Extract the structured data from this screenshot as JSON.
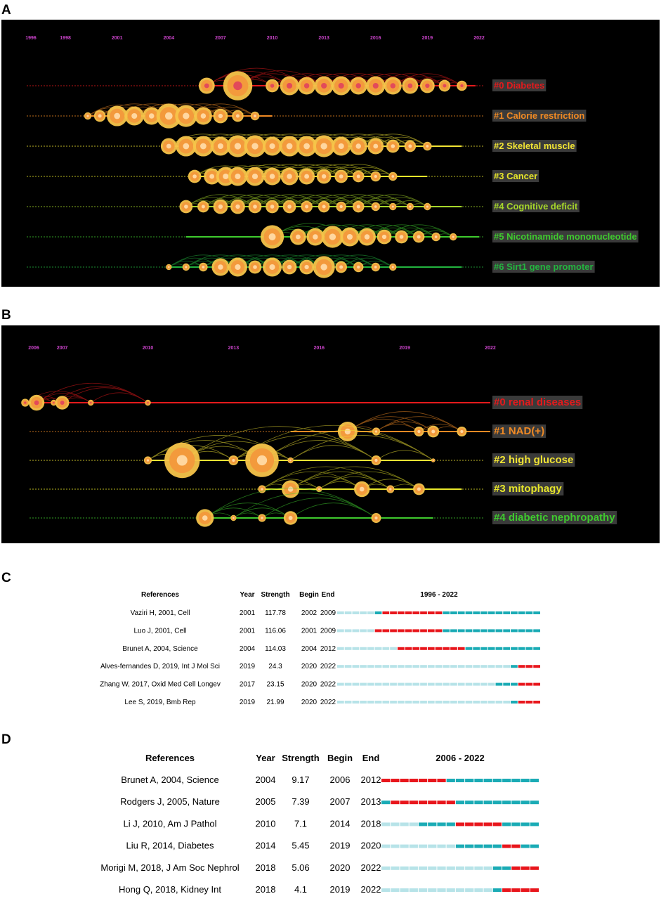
{
  "panels": {
    "A": "A",
    "B": "B",
    "C": "C",
    "D": "D"
  },
  "colors": {
    "background": "#000000",
    "year_label": "#cc44cc",
    "burst_red": "#e8161c",
    "burst_teal": "#1aabb5",
    "burst_light": "#b7e3e8",
    "cluster_colors": [
      "#e41a1c",
      "#f08a24",
      "#f1e434",
      "#e7e62a",
      "#a6d62a",
      "#3fca2e",
      "#23b43f"
    ]
  },
  "chart_data": [
    {
      "type": "timeline",
      "title": "A",
      "years": [
        "1996",
        "1998",
        "2001",
        "2004",
        "2007",
        "2010",
        "2013",
        "2016",
        "2019",
        "2022"
      ],
      "year_values": [
        1996,
        1998,
        2001,
        2004,
        2007,
        2010,
        2013,
        2016,
        2019,
        2022
      ],
      "xlim": [
        1996,
        2022
      ],
      "clusters": [
        {
          "label": "#0 Diabetes",
          "color": "#e41a1c",
          "start": 2006.2,
          "end": 2021.8,
          "nodes": [
            [
              2006.2,
              2.2
            ],
            [
              2008.0,
              4.0
            ],
            [
              2010.0,
              1.8
            ],
            [
              2011.0,
              2.6
            ],
            [
              2012.0,
              2.4
            ],
            [
              2013.0,
              2.6
            ],
            [
              2014.0,
              2.6
            ],
            [
              2015.0,
              2.4
            ],
            [
              2016.0,
              2.6
            ],
            [
              2017.0,
              2.4
            ],
            [
              2018.0,
              2.2
            ],
            [
              2019.0,
              2.0
            ],
            [
              2020.0,
              1.6
            ],
            [
              2021.0,
              1.4
            ]
          ]
        },
        {
          "label": "#1 Calorie restriction",
          "color": "#f08a24",
          "start": 1999.3,
          "end": 2010.0,
          "nodes": [
            [
              1999.3,
              1.0
            ],
            [
              2000.0,
              1.6
            ],
            [
              2001.0,
              2.8
            ],
            [
              2002.0,
              2.6
            ],
            [
              2003.0,
              2.4
            ],
            [
              2004.0,
              3.4
            ],
            [
              2005.0,
              3.0
            ],
            [
              2006.0,
              2.4
            ],
            [
              2007.0,
              2.0
            ],
            [
              2008.0,
              1.6
            ],
            [
              2009.0,
              1.2
            ]
          ]
        },
        {
          "label": "#2 Skeletal muscle",
          "color": "#f1e434",
          "start": 2004.0,
          "end": 2021.0,
          "nodes": [
            [
              2004.0,
              2.2
            ],
            [
              2005.0,
              2.8
            ],
            [
              2006.0,
              2.8
            ],
            [
              2007.0,
              2.6
            ],
            [
              2008.0,
              3.0
            ],
            [
              2009.0,
              3.0
            ],
            [
              2010.0,
              2.6
            ],
            [
              2011.0,
              2.8
            ],
            [
              2012.0,
              2.8
            ],
            [
              2013.0,
              3.0
            ],
            [
              2014.0,
              2.6
            ],
            [
              2015.0,
              2.4
            ],
            [
              2016.0,
              2.2
            ],
            [
              2017.0,
              1.8
            ],
            [
              2018.0,
              1.6
            ],
            [
              2019.0,
              1.2
            ]
          ]
        },
        {
          "label": "#3 Cancer",
          "color": "#e7e62a",
          "start": 2005.5,
          "end": 2019.0,
          "nodes": [
            [
              2005.5,
              1.8
            ],
            [
              2006.5,
              2.2
            ],
            [
              2007.3,
              2.6
            ],
            [
              2008.0,
              2.6
            ],
            [
              2009.0,
              2.6
            ],
            [
              2010.0,
              2.4
            ],
            [
              2011.0,
              2.4
            ],
            [
              2012.0,
              2.2
            ],
            [
              2013.0,
              2.0
            ],
            [
              2014.0,
              1.8
            ],
            [
              2015.0,
              1.6
            ],
            [
              2016.0,
              1.4
            ],
            [
              2017.0,
              1.2
            ]
          ]
        },
        {
          "label": "#4 Cognitive deficit",
          "color": "#a6d62a",
          "start": 2005.0,
          "end": 2021.0,
          "nodes": [
            [
              2005.0,
              1.8
            ],
            [
              2006.0,
              1.6
            ],
            [
              2007.0,
              2.0
            ],
            [
              2008.0,
              2.0
            ],
            [
              2009.0,
              1.8
            ],
            [
              2010.0,
              1.8
            ],
            [
              2011.0,
              1.8
            ],
            [
              2012.0,
              1.6
            ],
            [
              2013.0,
              1.6
            ],
            [
              2014.0,
              1.4
            ],
            [
              2015.0,
              1.6
            ],
            [
              2016.0,
              1.2
            ],
            [
              2017.0,
              1.0
            ],
            [
              2018.0,
              1.0
            ],
            [
              2019.0,
              1.0
            ]
          ]
        },
        {
          "label": "#5 Nicotinamide mononucleotide",
          "color": "#3fca2e",
          "start": 2005.0,
          "end": 2022.0,
          "nodes": [
            [
              2010.0,
              3.2
            ],
            [
              2011.5,
              2.2
            ],
            [
              2012.5,
              2.4
            ],
            [
              2013.5,
              3.0
            ],
            [
              2014.5,
              2.6
            ],
            [
              2015.5,
              2.4
            ],
            [
              2016.5,
              2.0
            ],
            [
              2017.5,
              1.8
            ],
            [
              2018.5,
              1.6
            ],
            [
              2019.5,
              1.2
            ],
            [
              2020.5,
              1.0
            ]
          ]
        },
        {
          "label": "#6 Sirt1 gene promoter",
          "color": "#23b43f",
          "start": 2004.0,
          "end": 2021.0,
          "nodes": [
            [
              2004.0,
              0.8
            ],
            [
              2005.0,
              1.0
            ],
            [
              2006.0,
              1.2
            ],
            [
              2007.0,
              2.4
            ],
            [
              2008.0,
              2.6
            ],
            [
              2009.0,
              1.8
            ],
            [
              2010.0,
              2.6
            ],
            [
              2011.0,
              2.0
            ],
            [
              2012.0,
              2.0
            ],
            [
              2013.0,
              3.0
            ],
            [
              2014.0,
              1.6
            ],
            [
              2015.0,
              1.4
            ],
            [
              2016.0,
              1.2
            ],
            [
              2017.0,
              1.0
            ]
          ]
        }
      ]
    },
    {
      "type": "timeline",
      "title": "B",
      "years": [
        "2006",
        "2007",
        "2010",
        "2013",
        "2016",
        "2019",
        "2022"
      ],
      "year_values": [
        2006,
        2007,
        2010,
        2013,
        2016,
        2019,
        2022
      ],
      "xlim": [
        2006,
        2022
      ],
      "clusters": [
        {
          "label": "#0 renal diseases",
          "color": "#e41a1c",
          "start": 2005.7,
          "end": 2022.0,
          "nodes": [
            [
              2005.7,
              0.8
            ],
            [
              2006.1,
              1.6
            ],
            [
              2006.7,
              0.6
            ],
            [
              2007.0,
              1.4
            ],
            [
              2008.0,
              0.6
            ],
            [
              2010.0,
              0.6
            ]
          ]
        },
        {
          "label": "#1 NAD(+)",
          "color": "#f08a24",
          "start": 2015.0,
          "end": 2022.0,
          "nodes": [
            [
              2017.0,
              2.0
            ],
            [
              2018.0,
              0.8
            ],
            [
              2019.5,
              1.0
            ],
            [
              2020.0,
              1.2
            ],
            [
              2021.0,
              1.0
            ]
          ]
        },
        {
          "label": "#2 high glucose",
          "color": "#f1e434",
          "start": 2010.0,
          "end": 2020.0,
          "nodes": [
            [
              2010.0,
              0.8
            ],
            [
              2011.2,
              3.6
            ],
            [
              2013.0,
              1.0
            ],
            [
              2014.0,
              3.4
            ],
            [
              2015.0,
              0.6
            ],
            [
              2018.0,
              1.0
            ],
            [
              2020.0,
              0.4
            ]
          ]
        },
        {
          "label": "#3 mitophagy",
          "color": "#e7e62a",
          "start": 2014.0,
          "end": 2021.0,
          "nodes": [
            [
              2014.0,
              0.8
            ],
            [
              2015.0,
              1.8
            ],
            [
              2016.0,
              0.6
            ],
            [
              2017.5,
              1.6
            ],
            [
              2018.5,
              0.8
            ],
            [
              2019.5,
              1.2
            ]
          ]
        },
        {
          "label": "#4 diabetic nephropathy",
          "color": "#3fca2e",
          "start": 2012.0,
          "end": 2020.0,
          "nodes": [
            [
              2012.0,
              1.8
            ],
            [
              2013.0,
              0.6
            ],
            [
              2014.0,
              0.8
            ],
            [
              2015.0,
              1.4
            ],
            [
              2018.0,
              1.0
            ]
          ]
        }
      ]
    },
    {
      "type": "table",
      "title": "C",
      "headers": [
        "References",
        "Year",
        "Strength",
        "Begin",
        "End",
        "1996 - 2022"
      ],
      "range": [
        1996,
        2022
      ],
      "rows": [
        {
          "ref": "Vaziri H, 2001, Cell",
          "year": "2001",
          "strength": "117.78",
          "begin": "2002",
          "end": "2009",
          "year_num": 2001,
          "begin_num": 2002,
          "end_num": 2009
        },
        {
          "ref": "Luo J, 2001, Cell",
          "year": "2001",
          "strength": "116.06",
          "begin": "2001",
          "end": "2009",
          "year_num": 2001,
          "begin_num": 2001,
          "end_num": 2009
        },
        {
          "ref": "Brunet A, 2004, Science",
          "year": "2004",
          "strength": "114.03",
          "begin": "2004",
          "end": "2012",
          "year_num": 2004,
          "begin_num": 2004,
          "end_num": 2012
        },
        {
          "ref": "Alves-fernandes D, 2019, Int J Mol Sci",
          "year": "2019",
          "strength": "24.3",
          "begin": "2020",
          "end": "2022",
          "year_num": 2019,
          "begin_num": 2020,
          "end_num": 2022
        },
        {
          "ref": "Zhang W, 2017, Oxid Med Cell Longev",
          "year": "2017",
          "strength": "23.15",
          "begin": "2020",
          "end": "2022",
          "year_num": 2017,
          "begin_num": 2020,
          "end_num": 2022
        },
        {
          "ref": "Lee S, 2019, Bmb Rep",
          "year": "2019",
          "strength": "21.99",
          "begin": "2020",
          "end": "2022",
          "year_num": 2019,
          "begin_num": 2020,
          "end_num": 2022
        }
      ]
    },
    {
      "type": "table",
      "title": "D",
      "headers": [
        "References",
        "Year",
        "Strength",
        "Begin",
        "End",
        "2006 - 2022"
      ],
      "range": [
        2006,
        2022
      ],
      "rows": [
        {
          "ref": "Brunet A, 2004, Science",
          "year": "2004",
          "strength": "9.17",
          "begin": "2006",
          "end": "2012",
          "year_num": 2004,
          "begin_num": 2006,
          "end_num": 2012
        },
        {
          "ref": "Rodgers J, 2005, Nature",
          "year": "2005",
          "strength": "7.39",
          "begin": "2007",
          "end": "2013",
          "year_num": 2005,
          "begin_num": 2007,
          "end_num": 2013
        },
        {
          "ref": "Li J, 2010, Am J Pathol",
          "year": "2010",
          "strength": "7.1",
          "begin": "2014",
          "end": "2018",
          "year_num": 2010,
          "begin_num": 2014,
          "end_num": 2018
        },
        {
          "ref": "Liu R, 2014, Diabetes",
          "year": "2014",
          "strength": "5.45",
          "begin": "2019",
          "end": "2020",
          "year_num": 2014,
          "begin_num": 2019,
          "end_num": 2020
        },
        {
          "ref": "Morigi M, 2018, J Am Soc Nephrol",
          "year": "2018",
          "strength": "5.06",
          "begin": "2020",
          "end": "2022",
          "year_num": 2018,
          "begin_num": 2020,
          "end_num": 2022
        },
        {
          "ref": "Hong Q, 2018, Kidney Int",
          "year": "2018",
          "strength": "4.1",
          "begin": "2019",
          "end": "2022",
          "year_num": 2018,
          "begin_num": 2019,
          "end_num": 2022
        }
      ]
    }
  ]
}
